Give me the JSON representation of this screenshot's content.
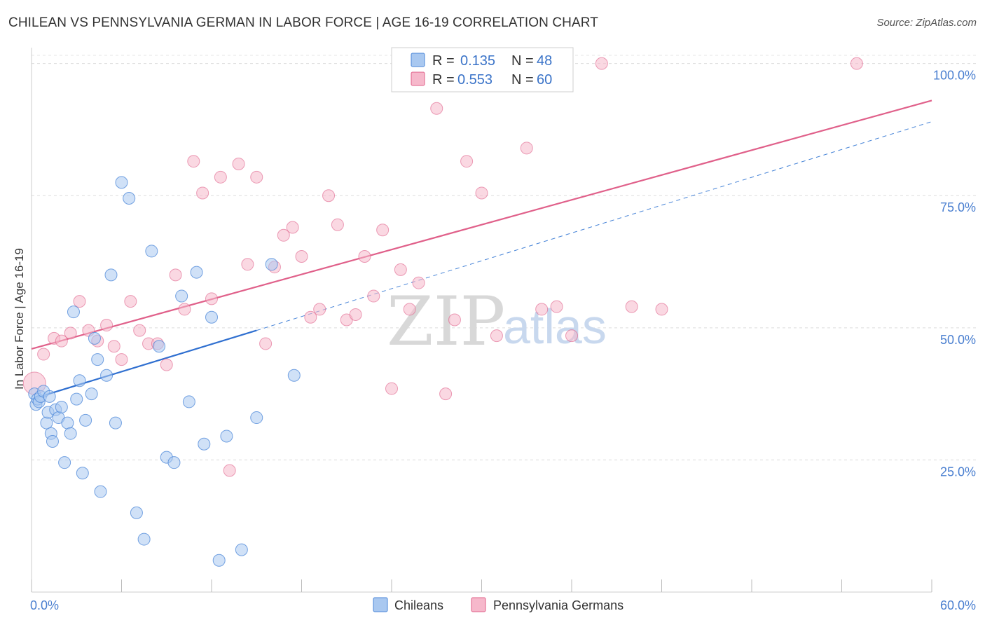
{
  "header": {
    "title": "CHILEAN VS PENNSYLVANIA GERMAN IN LABOR FORCE | AGE 16-19 CORRELATION CHART",
    "source": "Source: ZipAtlas.com"
  },
  "watermark": {
    "zip": "ZIP",
    "atlas": "atlas"
  },
  "legend_box": {
    "rows": [
      {
        "r_label": "R =",
        "r_value": "0.135",
        "n_label": "N =",
        "n_value": "48",
        "color": "#a9c8f0"
      },
      {
        "r_label": "R =",
        "r_value": "0.553",
        "n_label": "N =",
        "n_value": "60",
        "color": "#f6b8cb"
      }
    ]
  },
  "bottom_legend": {
    "items": [
      {
        "label": "Chileans",
        "color": "#a9c8f0"
      },
      {
        "label": "Pennsylvania Germans",
        "color": "#f6b8cb"
      }
    ]
  },
  "chart_data": {
    "type": "scatter",
    "title": "CHILEAN VS PENNSYLVANIA GERMAN IN LABOR FORCE | AGE 16-19 CORRELATION CHART",
    "xlabel": "",
    "ylabel": "In Labor Force | Age 16-19",
    "xlim": [
      0,
      60
    ],
    "ylim": [
      0,
      103
    ],
    "x_tick_labels": [
      "0.0%",
      "60.0%"
    ],
    "y_tick_labels": [
      "25.0%",
      "50.0%",
      "75.0%",
      "100.0%"
    ],
    "y_ticks": [
      25,
      50,
      75,
      100
    ],
    "grid": true,
    "legend_position": "top-center",
    "colors": {
      "chileans": "#4a86d8",
      "chileans_fill": "#a9c8f0",
      "pa_germans": "#e0608a",
      "pa_germans_fill": "#f6b8cb"
    },
    "series": [
      {
        "name": "Chileans",
        "x": [
          0.2,
          0.3,
          0.4,
          0.5,
          0.6,
          0.8,
          1.0,
          1.1,
          1.2,
          1.3,
          1.4,
          1.6,
          1.8,
          2.0,
          2.2,
          2.4,
          2.6,
          2.8,
          3.0,
          3.2,
          3.4,
          3.6,
          4.0,
          4.2,
          4.4,
          4.6,
          5.0,
          5.3,
          5.6,
          6.0,
          6.5,
          7.0,
          7.5,
          8.0,
          8.5,
          9.0,
          9.5,
          10.0,
          10.5,
          11.0,
          11.5,
          12.0,
          12.5,
          13.0,
          14.0,
          15.0,
          16.0,
          17.5
        ],
        "y": [
          37.5,
          35.5,
          36.5,
          36.0,
          37.0,
          38.0,
          32.0,
          34.0,
          37.0,
          30.0,
          28.5,
          34.5,
          33.0,
          35.0,
          24.5,
          32.0,
          30.0,
          53.0,
          36.5,
          40.0,
          22.5,
          32.5,
          37.5,
          48.0,
          44.0,
          19.0,
          41.0,
          60.0,
          32.0,
          77.5,
          74.5,
          15.0,
          10.0,
          64.5,
          46.5,
          25.5,
          24.5,
          56.0,
          36.0,
          60.5,
          28.0,
          52.0,
          6.0,
          29.5,
          8.0,
          33.0,
          62.0,
          41.0
        ],
        "trend": {
          "x": [
            0,
            15
          ],
          "y": [
            36.5,
            49.5
          ]
        }
      },
      {
        "name": "Pennsylvania Germans",
        "x": [
          0.2,
          0.8,
          1.5,
          2.0,
          2.6,
          3.2,
          3.8,
          4.4,
          5.0,
          5.5,
          6.0,
          6.6,
          7.2,
          7.8,
          8.4,
          9.0,
          9.6,
          10.2,
          10.8,
          11.4,
          12.0,
          12.6,
          13.2,
          13.8,
          14.4,
          15.0,
          15.6,
          16.2,
          16.8,
          17.4,
          18.0,
          18.6,
          19.2,
          19.8,
          20.4,
          21.0,
          21.6,
          22.2,
          22.8,
          23.4,
          24.0,
          24.6,
          25.2,
          25.8,
          26.4,
          27.0,
          27.6,
          28.2,
          29.0,
          30.0,
          31.0,
          32.0,
          33.0,
          34.0,
          35.0,
          36.0,
          38.0,
          40.0,
          42.0,
          55.0
        ],
        "y": [
          39.5,
          45.0,
          48.0,
          47.5,
          49.0,
          55.0,
          49.5,
          47.5,
          50.5,
          46.5,
          44.0,
          55.0,
          49.5,
          47.0,
          47.0,
          43.0,
          60.0,
          53.5,
          81.5,
          75.5,
          55.5,
          78.5,
          23.0,
          81.0,
          62.0,
          78.5,
          47.0,
          61.5,
          67.5,
          69.0,
          63.5,
          52.0,
          53.5,
          75.0,
          69.5,
          51.5,
          52.5,
          63.5,
          56.0,
          68.5,
          38.5,
          61.0,
          53.5,
          58.5,
          100.0,
          91.5,
          37.5,
          51.5,
          81.5,
          75.5,
          48.5,
          100.0,
          84.0,
          53.5,
          54.0,
          48.5,
          100.0,
          54.0,
          53.5,
          100.0
        ],
        "trend": {
          "x": [
            0,
            60
          ],
          "y": [
            46.0,
            93.0
          ]
        }
      }
    ],
    "dashed_extension": {
      "x": [
        15,
        60
      ],
      "y": [
        49.5,
        89.0
      ]
    }
  }
}
